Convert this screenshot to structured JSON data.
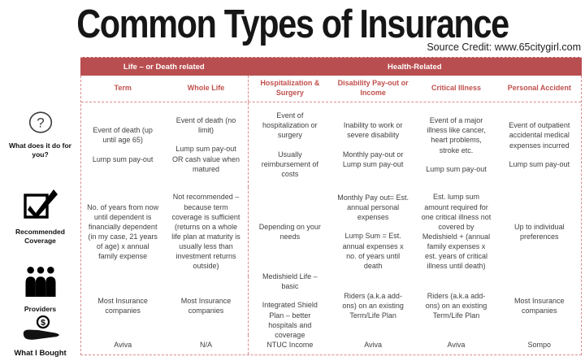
{
  "title": "Common Types of Insurance",
  "source_credit": "Source Credit: www.65citygirl.com",
  "colors": {
    "header_band": "#b94e50",
    "header_text": "#c0504d",
    "dashed_border": "#d98b8b",
    "body_text": "#3f3f3f"
  },
  "sidebar": {
    "rows": [
      {
        "icon": "question-icon",
        "label": "What does it do for you?"
      },
      {
        "icon": "checkbox-icon",
        "label": "Recommended Coverage"
      },
      {
        "icon": "providers-icon",
        "label": "Providers"
      },
      {
        "icon": "money-hand-icon",
        "label": "What I Bought"
      }
    ]
  },
  "table": {
    "groups": [
      {
        "label": "Life – or Death related",
        "span": 2
      },
      {
        "label": "Health-Related",
        "span": 4
      }
    ],
    "columns": [
      "Term",
      "Whole Life",
      "Hospitalization & Surgery",
      "Disability Pay-out or Income",
      "Critical Illness",
      "Personal Accident"
    ],
    "rows": [
      {
        "label": "What does it do for you?",
        "cells": [
          [
            "Event of death (up until age 65)",
            "Lump sum pay-out"
          ],
          [
            "Event of death (no limit)",
            "Lump sum pay-out OR cash value when matured"
          ],
          [
            "Event of hospitalization or surgery",
            "Usually reimbursement of costs"
          ],
          [
            "Inability to work or severe disability",
            "Monthly pay-out or Lump sum pay-out"
          ],
          [
            "Event of a major illness like cancer, heart problems, stroke etc.",
            "Lump sum pay-out"
          ],
          [
            "Event of outpatient accidental medical expenses incurred",
            "Lump sum pay-out"
          ]
        ]
      },
      {
        "label": "Recommended Coverage",
        "cells": [
          [
            "No. of years from now until dependent is financially dependent (in my case, 21 years of age) x annual family expense"
          ],
          [
            "Not recommended – because term coverage is sufficient (returns on a whole life plan at maturity is usually less than investment returns outside)"
          ],
          [
            "Depending on your needs"
          ],
          [
            "Monthly Pay out= Est. annual personal expenses",
            "Lump Sum = Est. annual expenses x no. of years until death"
          ],
          [
            "Est. lump sum amount required for one critical illness not covered by Medishield + (annual family expenses x est. years of critical illness until death)"
          ],
          [
            "Up to individual preferences"
          ]
        ]
      },
      {
        "label": "Providers",
        "cells": [
          [
            "Most Insurance companies"
          ],
          [
            "Most Insurance companies"
          ],
          [
            "Medishield Life – basic",
            "Integrated Shield Plan – better hospitals and coverage"
          ],
          [
            "Riders (a.k.a add-ons) on an existing Term/Life Plan"
          ],
          [
            "Riders (a.k.a add-ons) on an existing Term/Life Plan"
          ],
          [
            "Most Insurance companies"
          ]
        ]
      },
      {
        "label": "What I Bought",
        "cells": [
          [
            "Aviva"
          ],
          [
            "N/A"
          ],
          [
            "NTUC Income"
          ],
          [
            "Aviva"
          ],
          [
            "Aviva"
          ],
          [
            "Sompo"
          ]
        ]
      }
    ]
  }
}
